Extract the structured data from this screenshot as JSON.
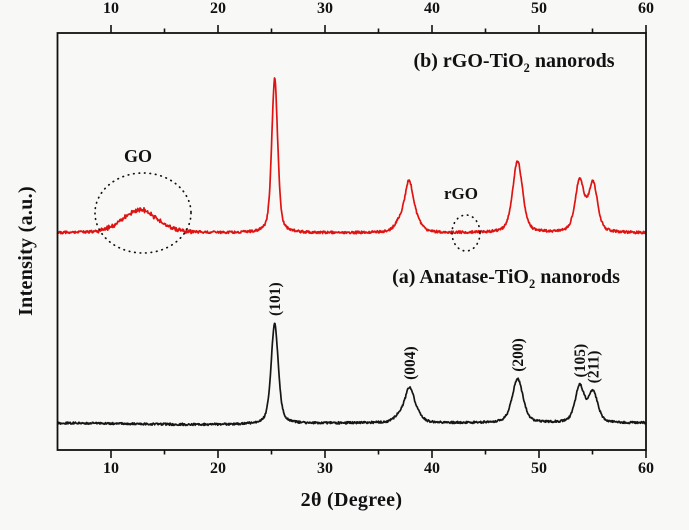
{
  "chart_data": {
    "type": "line",
    "title": "",
    "xlabel": "2θ (Degree)",
    "ylabel": "Intensity (a.u.)",
    "x_range": [
      5,
      60
    ],
    "x_major_ticks": [
      10,
      20,
      30,
      40,
      50,
      60
    ],
    "x_minor_ticks": [
      15,
      25,
      35,
      45,
      55
    ],
    "y_axis": "arbitrary units, no tick labels",
    "grid": false,
    "legend_position": "none (curves labeled inline)",
    "axes_style": "closed box, ticks outward on top and bottom axes, mirrored top x-axis",
    "series": [
      {
        "name": "(a) Anatase-TiO2 nanorods",
        "label": {
          "prefix": "(a) Anatase-TiO",
          "sub": "2",
          "suffix": " nanorods"
        },
        "color": "#161616",
        "offset_level": "lower trace",
        "peaks": [
          {
            "two_theta": 25.3,
            "rel_intensity": 100,
            "hwhm_deg": 0.4,
            "hkl": "(101)"
          },
          {
            "two_theta": 37.0,
            "rel_intensity": 7,
            "hwhm_deg": 0.55,
            "hkl": null
          },
          {
            "two_theta": 37.9,
            "rel_intensity": 33,
            "hwhm_deg": 0.5,
            "hkl": "(004)"
          },
          {
            "two_theta": 38.65,
            "rel_intensity": 6,
            "hwhm_deg": 0.5,
            "hkl": null
          },
          {
            "two_theta": 48.0,
            "rel_intensity": 44,
            "hwhm_deg": 0.6,
            "hkl": "(200)"
          },
          {
            "two_theta": 53.8,
            "rel_intensity": 36,
            "hwhm_deg": 0.5,
            "hkl": "(105)"
          },
          {
            "two_theta": 55.05,
            "rel_intensity": 30,
            "hwhm_deg": 0.52,
            "hkl": "(211)"
          }
        ]
      },
      {
        "name": "(b) rGO-TiO2 nanorods",
        "label": {
          "prefix": "(b) rGO-TiO",
          "sub": "2",
          "suffix": " nanorods"
        },
        "color": "#df1412",
        "offset_level": "upper trace",
        "peaks": [
          {
            "two_theta": 12.7,
            "rel_intensity": 15,
            "hwhm_deg": 1.9,
            "hkl": null,
            "note": "broad GO hump"
          },
          {
            "two_theta": 25.3,
            "rel_intensity": 100,
            "hwhm_deg": 0.33,
            "hkl": null
          },
          {
            "two_theta": 36.95,
            "rel_intensity": 6,
            "hwhm_deg": 0.5,
            "hkl": null
          },
          {
            "two_theta": 37.85,
            "rel_intensity": 32,
            "hwhm_deg": 0.48,
            "hkl": null
          },
          {
            "two_theta": 38.65,
            "rel_intensity": 5,
            "hwhm_deg": 0.5,
            "hkl": null
          },
          {
            "two_theta": 48.0,
            "rel_intensity": 46,
            "hwhm_deg": 0.55,
            "hkl": null
          },
          {
            "two_theta": 53.8,
            "rel_intensity": 33,
            "hwhm_deg": 0.5,
            "hkl": null
          },
          {
            "two_theta": 55.05,
            "rel_intensity": 31,
            "hwhm_deg": 0.5,
            "hkl": null
          }
        ]
      }
    ],
    "annotations": [
      {
        "text": "GO",
        "two_theta": 12.7,
        "on_series": "(b)",
        "circled": true,
        "circle_style": "dotted ellipse around broad hump"
      },
      {
        "text": "rGO",
        "two_theta": 43.0,
        "on_series": "(b)",
        "circled": true,
        "circle_style": "small dotted ellipse on baseline"
      }
    ]
  }
}
